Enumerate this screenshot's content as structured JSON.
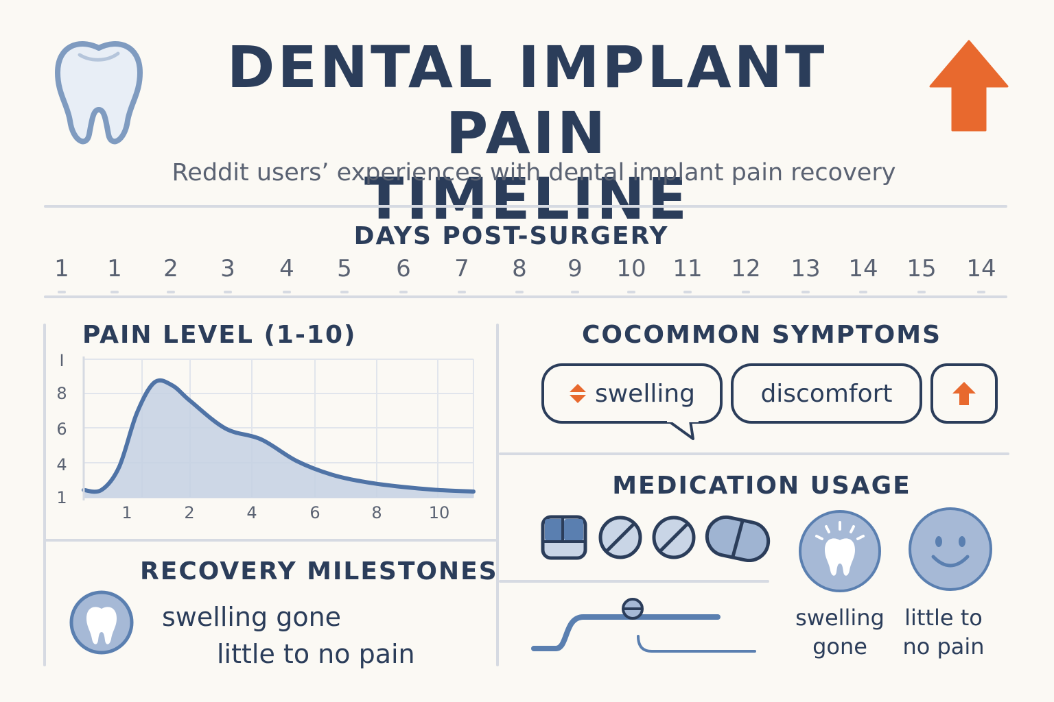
{
  "header": {
    "title_line1": "DENTAL IMPLANT PAIN",
    "title_line2": "TIMELINE",
    "subtitle": "Reddit users’ experiences with dental implant pain recovery",
    "accent_color": "#e8692e",
    "primary_color": "#2b3d5a",
    "secondary_color": "#5a7fb0"
  },
  "days": {
    "heading": "DAYS POST-SURGERY",
    "labels": [
      "1",
      "1",
      "2",
      "3",
      "4",
      "5",
      "6",
      "7",
      "8",
      "9",
      "10",
      "11",
      "12",
      "13",
      "14",
      "15",
      "14"
    ]
  },
  "pain_chart": {
    "heading": "PAIN LEVEL (1-10)",
    "y_tick_labels": [
      "I",
      "8",
      "6",
      "4",
      "1"
    ],
    "x_tick_labels": [
      "1",
      "2",
      "4",
      "6",
      "8",
      "10"
    ]
  },
  "chart_data": {
    "type": "area",
    "title": "PAIN LEVEL (1-10)",
    "xlabel": "",
    "ylabel": "",
    "x": [
      0,
      0.5,
      1,
      1.5,
      2,
      2.5,
      3,
      4,
      5,
      6,
      7,
      8,
      9,
      10,
      11
    ],
    "y": [
      1.5,
      1.5,
      3,
      6.5,
      8.5,
      8.3,
      7.3,
      5.5,
      4.8,
      3.4,
      2.5,
      2,
      1.7,
      1.5,
      1.4
    ],
    "xlim": [
      0,
      11
    ],
    "ylim": [
      1,
      10
    ],
    "grid": true,
    "fill_color": "#c4d1e3",
    "line_color": "#4f73a6"
  },
  "symptoms": {
    "heading": "COCOMMON SYMPTOMS",
    "items": [
      "swelling",
      "discomfort"
    ]
  },
  "medication": {
    "heading": "MEDICATION USAGE",
    "icon_labels": [
      "swelling gone",
      "little to no pain"
    ]
  },
  "milestones": {
    "heading": "RECOVERY MILESTONES",
    "items": [
      "swelling gone",
      "little to no pain"
    ]
  }
}
